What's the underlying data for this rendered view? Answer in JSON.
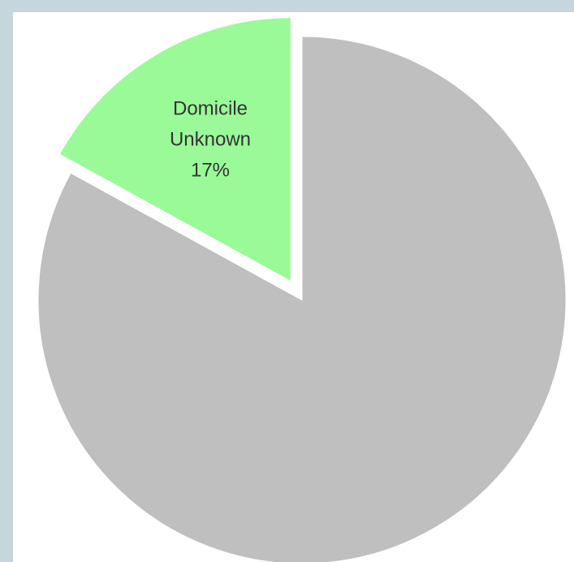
{
  "chart_data": {
    "type": "pie",
    "title": "",
    "slices": [
      {
        "label_lines": [
          "Domicile",
          "Unknown",
          "17%"
        ],
        "value": 17,
        "color": "#9afa98",
        "exploded": true
      },
      {
        "label_lines": [],
        "value": 83,
        "color": "#bfbfbf",
        "exploded": false
      }
    ],
    "legend": "none"
  }
}
